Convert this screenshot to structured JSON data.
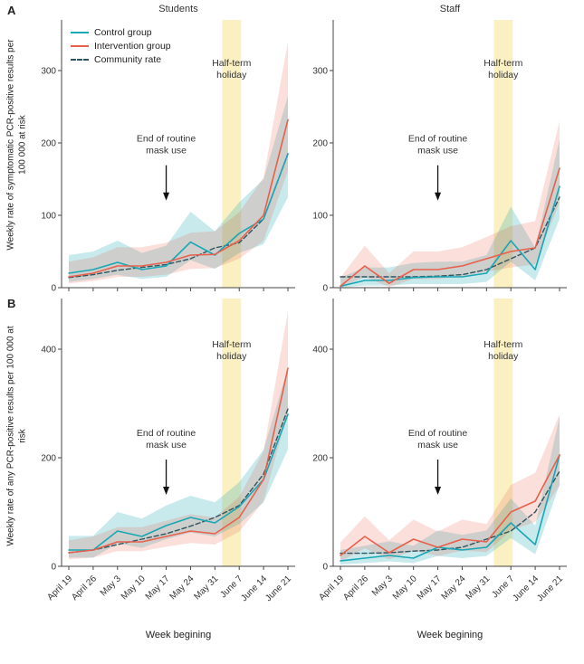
{
  "figure": {
    "panels": {
      "A": {
        "label": "A",
        "ylabel": "Weekly rate of symptomatic PCR-positive results per 100 000 at risk"
      },
      "B": {
        "label": "B",
        "ylabel": "Weekly rate of any PCR-positive results per 100 000 at risk"
      }
    },
    "column_titles": [
      "Students",
      "Staff"
    ],
    "legend": [
      {
        "label": "Control group",
        "color": "#18a7b5",
        "band": "rgba(24,167,181,0.24)",
        "style": "solid"
      },
      {
        "label": "Intervention group",
        "color": "#e8604c",
        "band": "rgba(232,96,76,0.20)",
        "style": "solid"
      },
      {
        "label": "Community rate",
        "color": "#2e5560",
        "style": "dashed"
      }
    ],
    "annotations": {
      "holiday": "Half-term holiday",
      "holiday_lines": [
        "Half-term",
        "holiday"
      ],
      "mask": "End of routine mask use",
      "mask_lines": [
        "End of routine",
        "mask use"
      ]
    },
    "xlabel": "Week begining",
    "colors": {
      "axis": "#444",
      "holiday_band": "#faf0c2",
      "text": "#333"
    }
  },
  "chart_data": [
    {
      "id": "a-students",
      "type": "line",
      "title": "Students",
      "ylabel": "Weekly rate of symptomatic PCR-positive results per 100 000 at risk",
      "categories": [
        "April 19",
        "April 26",
        "May 3",
        "May 10",
        "May 17",
        "May 24",
        "May 31",
        "June 7",
        "June 14",
        "June 21"
      ],
      "ylim": [
        0,
        360
      ],
      "yticks": [
        0,
        100,
        200,
        300
      ],
      "holiday_band": [
        "May 31",
        "June 7"
      ],
      "mask_arrow_at": "May 17",
      "holiday_frac": 0.15,
      "mask_frac": 0.44,
      "series": [
        {
          "name": "Control group",
          "values": [
            20,
            25,
            35,
            25,
            30,
            63,
            45,
            75,
            95,
            185
          ],
          "ci_lower": [
            8,
            12,
            18,
            12,
            15,
            38,
            26,
            48,
            60,
            125
          ],
          "ci_upper": [
            45,
            50,
            65,
            48,
            58,
            105,
            78,
            118,
            150,
            265
          ]
        },
        {
          "name": "Intervention group",
          "values": [
            15,
            20,
            30,
            30,
            35,
            45,
            46,
            65,
            100,
            232
          ],
          "ci_lower": [
            6,
            9,
            15,
            15,
            18,
            26,
            27,
            40,
            65,
            162
          ],
          "ci_upper": [
            36,
            42,
            56,
            56,
            62,
            76,
            78,
            104,
            152,
            340
          ]
        },
        {
          "name": "Community rate",
          "values": [
            14,
            18,
            24,
            28,
            32,
            40,
            55,
            62,
            95,
            185
          ]
        }
      ]
    },
    {
      "id": "a-staff",
      "type": "line",
      "title": "Staff",
      "ylabel": "Weekly rate of symptomatic PCR-positive results per 100 000 at risk",
      "categories": [
        "April 19",
        "April 26",
        "May 3",
        "May 10",
        "May 17",
        "May 24",
        "May 31",
        "June 7",
        "June 14",
        "June 21"
      ],
      "ylim": [
        0,
        360
      ],
      "yticks": [
        0,
        100,
        200,
        300
      ],
      "holiday_band": [
        "May 31",
        "June 7"
      ],
      "mask_arrow_at": "May 17",
      "holiday_frac": 0.15,
      "mask_frac": 0.44,
      "series": [
        {
          "name": "Control group",
          "values": [
            2,
            10,
            10,
            14,
            15,
            15,
            20,
            65,
            25,
            140
          ],
          "ci_lower": [
            0,
            3,
            3,
            5,
            5,
            5,
            8,
            36,
            10,
            95
          ],
          "ci_upper": [
            14,
            28,
            28,
            34,
            36,
            36,
            45,
            112,
            55,
            205
          ]
        },
        {
          "name": "Intervention group",
          "values": [
            2,
            30,
            6,
            25,
            25,
            30,
            40,
            50,
            55,
            165
          ],
          "ci_lower": [
            0,
            15,
            1,
            12,
            12,
            16,
            22,
            28,
            32,
            118
          ],
          "ci_upper": [
            14,
            58,
            20,
            50,
            50,
            56,
            70,
            85,
            92,
            230
          ]
        },
        {
          "name": "Community rate",
          "values": [
            15,
            15,
            15,
            15,
            16,
            18,
            25,
            40,
            55,
            125
          ]
        }
      ]
    },
    {
      "id": "b-students",
      "type": "line",
      "title": "Students",
      "ylabel": "Weekly rate of any PCR-positive results per 100 000 at risk",
      "categories": [
        "April 19",
        "April 26",
        "May 3",
        "May 10",
        "May 17",
        "May 24",
        "May 31",
        "June 7",
        "June 14",
        "June 21"
      ],
      "ylim": [
        0,
        480
      ],
      "yticks": [
        0,
        200,
        400
      ],
      "holiday_band": [
        "May 31",
        "June 7"
      ],
      "mask_arrow_at": "May 17",
      "holiday_frac": 0.16,
      "mask_frac": 0.5,
      "series": [
        {
          "name": "Control group",
          "values": [
            30,
            30,
            65,
            55,
            75,
            90,
            80,
            110,
            160,
            280
          ],
          "ci_lower": [
            16,
            16,
            42,
            34,
            50,
            62,
            55,
            78,
            118,
            215
          ],
          "ci_upper": [
            56,
            56,
            100,
            88,
            112,
            130,
            118,
            155,
            215,
            365
          ]
        },
        {
          "name": "Intervention group",
          "values": [
            25,
            30,
            45,
            45,
            55,
            65,
            60,
            90,
            160,
            365
          ],
          "ci_lower": [
            13,
            16,
            28,
            28,
            36,
            43,
            40,
            64,
            120,
            285
          ],
          "ci_upper": [
            48,
            55,
            72,
            72,
            84,
            96,
            90,
            128,
            212,
            470
          ]
        },
        {
          "name": "Community rate",
          "values": [
            25,
            30,
            40,
            50,
            60,
            74,
            90,
            112,
            170,
            290
          ]
        }
      ]
    },
    {
      "id": "b-staff",
      "type": "line",
      "title": "Staff",
      "ylabel": "Weekly rate of any PCR-positive results per 100 000 at risk",
      "categories": [
        "April 19",
        "April 26",
        "May 3",
        "May 10",
        "May 17",
        "May 24",
        "May 31",
        "June 7",
        "June 14",
        "June 21"
      ],
      "ylim": [
        0,
        480
      ],
      "yticks": [
        0,
        200,
        400
      ],
      "holiday_band": [
        "May 31",
        "June 7"
      ],
      "mask_arrow_at": "May 17",
      "holiday_frac": 0.16,
      "mask_frac": 0.5,
      "series": [
        {
          "name": "Control group",
          "values": [
            10,
            15,
            20,
            15,
            35,
            30,
            35,
            80,
            40,
            205
          ],
          "ci_lower": [
            3,
            6,
            9,
            6,
            19,
            15,
            19,
            52,
            22,
            150
          ],
          "ci_upper": [
            30,
            38,
            46,
            38,
            66,
            58,
            66,
            125,
            75,
            275
          ]
        },
        {
          "name": "Intervention group",
          "values": [
            20,
            55,
            25,
            50,
            35,
            50,
            45,
            100,
            120,
            205
          ],
          "ci_lower": [
            9,
            33,
            13,
            29,
            19,
            29,
            26,
            66,
            82,
            148
          ],
          "ci_upper": [
            44,
            92,
            48,
            86,
            64,
            86,
            78,
            150,
            172,
            280
          ]
        },
        {
          "name": "Community rate",
          "values": [
            24,
            24,
            25,
            28,
            30,
            35,
            50,
            65,
            100,
            175
          ]
        }
      ]
    }
  ]
}
